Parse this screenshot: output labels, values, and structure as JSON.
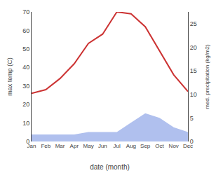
{
  "chart_data": {
    "type": "line",
    "categories": [
      "Jan",
      "Feb",
      "Mar",
      "Apr",
      "May",
      "Jun",
      "Jul",
      "Aug",
      "Sep",
      "Oct",
      "Nov",
      "Dec"
    ],
    "series": [
      {
        "type": "area",
        "axis": "y2",
        "color": "#b0c0ee",
        "values": [
          1.5,
          1.5,
          1.5,
          1.5,
          2,
          2,
          2,
          4,
          6,
          5,
          3,
          2
        ]
      },
      {
        "type": "line",
        "color": "#cc3333",
        "values": [
          26,
          28,
          34,
          42,
          53,
          58,
          70,
          69,
          62,
          49,
          36,
          27
        ]
      }
    ],
    "xlabel": "date (month)",
    "ylabel": "max temp (C)",
    "y2label": "med. precipitation (kg/m2)",
    "ylim": [
      0,
      70
    ],
    "yticks": [
      0,
      10,
      20,
      30,
      40,
      50,
      60,
      70
    ],
    "y2lim": [
      0,
      27.5
    ],
    "y2ticks": [
      0,
      5,
      10,
      15,
      20,
      25
    ],
    "grid": false
  }
}
